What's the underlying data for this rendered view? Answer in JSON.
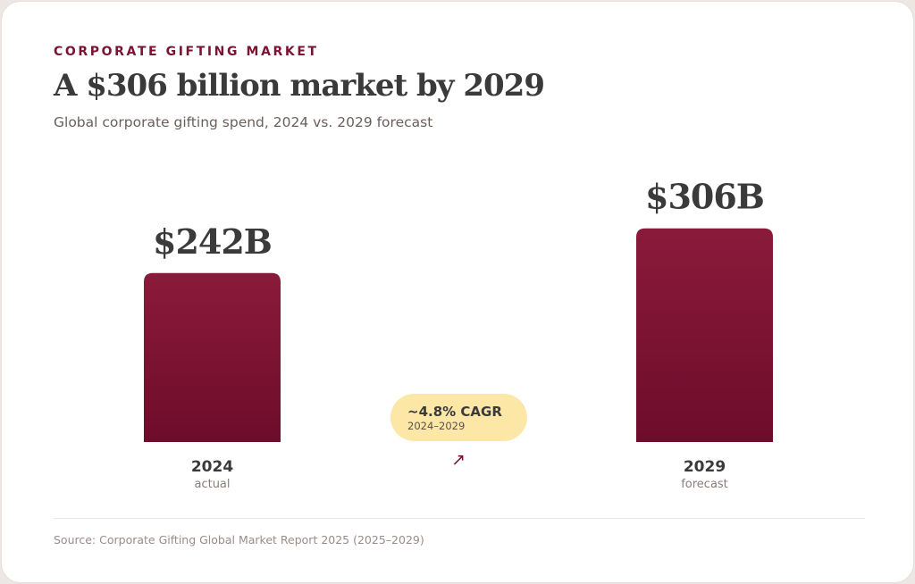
{
  "header": {
    "eyebrow": "CORPORATE GIFTING MARKET",
    "title": "A $306 billion market by 2029",
    "subtitle": "Global corporate gifting spend, 2024 vs. 2029 forecast"
  },
  "colors": {
    "bar_top": "#8a1a3b",
    "bar_bottom": "#6e0c2b",
    "accent": "#7a1433",
    "pill_background": "#fde7a6"
  },
  "chart_data": {
    "type": "bar",
    "categories": [
      "2024",
      "2029"
    ],
    "category_notes": [
      "actual",
      "forecast"
    ],
    "values": [
      242,
      306
    ],
    "value_labels": [
      "$242B",
      "$306B"
    ],
    "unit": "billion USD",
    "ylim": [
      0,
      320
    ],
    "grid": false,
    "annotation": {
      "text": "~4.8% CAGR",
      "subtext": "2024–2029",
      "icon": "arrow-up-right-icon"
    }
  },
  "footer": {
    "source": "Source: Corporate Gifting Global Market Report 2025 (2025–2029)"
  }
}
